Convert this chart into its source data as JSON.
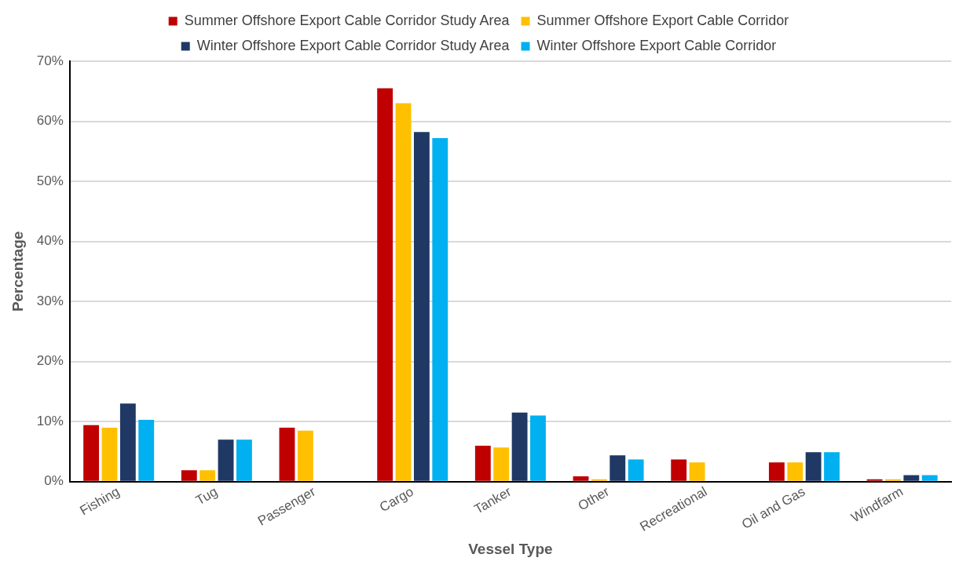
{
  "chart_data": {
    "type": "bar",
    "xlabel": "Vessel Type",
    "ylabel": "Percentage",
    "categories": [
      "Fishing",
      "Tug",
      "Passenger",
      "Cargo",
      "Tanker",
      "Other",
      "Recreational",
      "Oil and Gas",
      "Windfarm"
    ],
    "series": [
      {
        "name": "Summer Offshore Export Cable Corridor Study Area",
        "color": "#c00000",
        "values": [
          9.4,
          1.9,
          9.0,
          65.5,
          6.0,
          0.9,
          3.7,
          3.2,
          0.4
        ]
      },
      {
        "name": "Summer Offshore Export Cable Corridor",
        "color": "#ffc000",
        "values": [
          9.0,
          1.9,
          8.5,
          63.0,
          5.7,
          0.4,
          3.2,
          3.2,
          0.4
        ]
      },
      {
        "name": "Winter Offshore Export Cable Corridor Study Area",
        "color": "#1f3864",
        "values": [
          13.0,
          7.0,
          null,
          58.2,
          11.5,
          4.4,
          null,
          4.9,
          1.1
        ]
      },
      {
        "name": "Winter Offshore Export Cable Corridor",
        "color": "#00b0f0",
        "values": [
          10.3,
          7.0,
          null,
          57.2,
          11.0,
          3.7,
          null,
          4.9,
          1.1
        ]
      }
    ],
    "ylim": [
      0,
      70
    ],
    "yticks": [
      {
        "value": 0,
        "label": "0%"
      },
      {
        "value": 10,
        "label": "10%"
      },
      {
        "value": 20,
        "label": "20%"
      },
      {
        "value": 30,
        "label": "30%"
      },
      {
        "value": 40,
        "label": "40%"
      },
      {
        "value": 50,
        "label": "50%"
      },
      {
        "value": 60,
        "label": "60%"
      },
      {
        "value": 70,
        "label": "70%"
      }
    ],
    "grid": "y",
    "legend": "top"
  }
}
